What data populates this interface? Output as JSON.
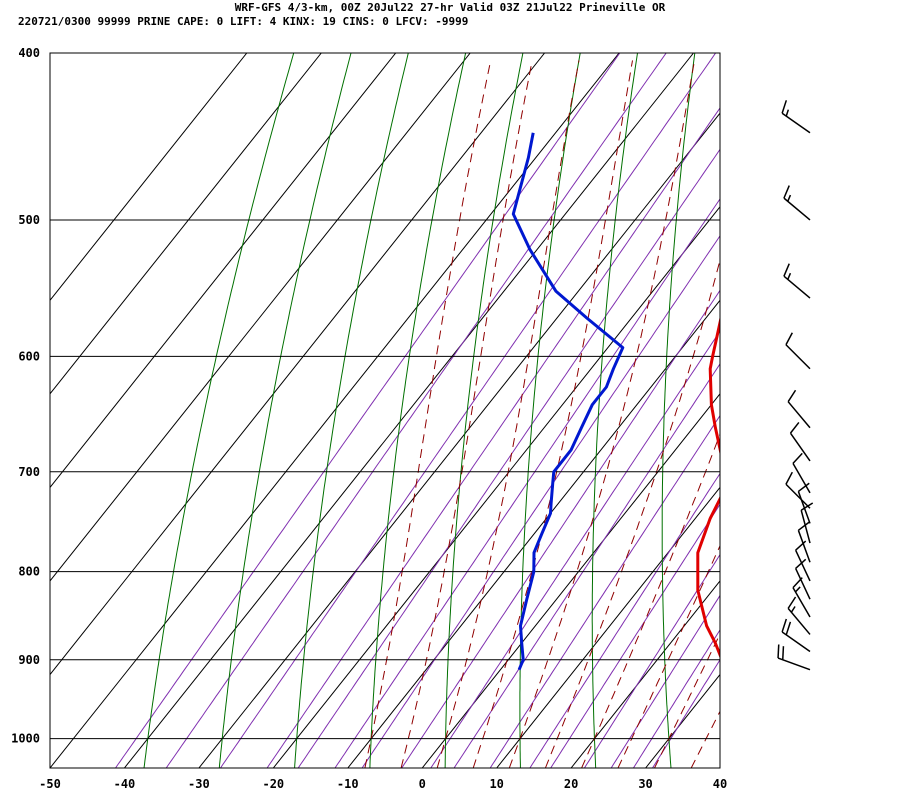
{
  "header": {
    "line1": "WRF-GFS 4/3-km, 00Z 20Jul22 27-hr Valid 03Z 21Jul22 Prineville OR",
    "line2": "220721/0300 99999  PRINE   CAPE:      0 LIFT:     4 KINX:    19 CINS:     0 LFCV: -9999"
  },
  "chart_data": {
    "type": "line",
    "title": "WRF-GFS 4/3-km, 00Z 20Jul22 27-hr Valid 03Z 21Jul22 Prineville OR",
    "subtitle": "220721/0300 99999  PRINE   CAPE:      0 LIFT:     4 KINX:    19 CINS:     0 LFCV: -9999",
    "skew_deg_per_log_p": 80,
    "xlim": [
      -50,
      40
    ],
    "ylim": [
      1040,
      400
    ],
    "y_scale": "log",
    "grid": true,
    "x_ticks": [
      -50,
      -40,
      -30,
      -20,
      -10,
      0,
      10,
      20,
      30,
      40
    ],
    "y_ticks": [
      400,
      500,
      600,
      700,
      800,
      900,
      1000
    ],
    "isotherms_C": [
      -100,
      -90,
      -80,
      -70,
      -60,
      -50,
      -40,
      -30,
      -20,
      -10,
      0,
      10,
      20,
      30,
      40
    ],
    "dry_adiabats_C": [
      -40,
      -30,
      -20,
      -10,
      0,
      10,
      20,
      30,
      40,
      50,
      60,
      70,
      80,
      90,
      100,
      110,
      120,
      130
    ],
    "moist_adiabats_C": [
      -10,
      -5,
      0,
      5,
      10,
      15,
      20,
      25,
      30,
      35
    ],
    "mixing_ratio_gkg": [
      0.1,
      0.2,
      0.4,
      0.7,
      1,
      1.5,
      2,
      3,
      4,
      5,
      7,
      10,
      12,
      16,
      20,
      24,
      28
    ],
    "series": [
      {
        "name": "",
        "color": "#e00000",
        "points": [
          [
            912,
            30.5
          ],
          [
            906,
            29.5
          ],
          [
            880,
            26
          ],
          [
            860,
            23
          ],
          [
            820,
            18
          ],
          [
            780,
            14
          ],
          [
            745,
            12
          ],
          [
            720,
            11
          ],
          [
            700,
            9
          ],
          [
            660,
            3
          ],
          [
            640,
            0
          ],
          [
            610,
            -4
          ],
          [
            600,
            -5
          ],
          [
            560,
            -9
          ],
          [
            520,
            -13
          ],
          [
            500,
            -15
          ],
          [
            470,
            -19
          ],
          [
            445,
            -21
          ]
        ]
      },
      {
        "name": "",
        "color": "#0018d0",
        "points": [
          [
            912,
            2.5
          ],
          [
            900,
            2
          ],
          [
            880,
            0
          ],
          [
            860,
            -2
          ],
          [
            830,
            -4
          ],
          [
            800,
            -6
          ],
          [
            780,
            -8
          ],
          [
            760,
            -9
          ],
          [
            740,
            -10
          ],
          [
            730,
            -11
          ],
          [
            710,
            -13
          ],
          [
            700,
            -14
          ],
          [
            680,
            -14
          ],
          [
            660,
            -15
          ],
          [
            640,
            -16
          ],
          [
            625,
            -16
          ],
          [
            610,
            -17
          ],
          [
            593,
            -18
          ],
          [
            570,
            -26
          ],
          [
            550,
            -33
          ],
          [
            520,
            -41
          ],
          [
            496,
            -47
          ],
          [
            460,
            -51
          ],
          [
            445,
            -53
          ]
        ]
      }
    ],
    "wind_barbs": [
      {
        "p": 445,
        "dir": 305,
        "spd": 15
      },
      {
        "p": 500,
        "dir": 310,
        "spd": 15
      },
      {
        "p": 555,
        "dir": 310,
        "spd": 15
      },
      {
        "p": 610,
        "dir": 315,
        "spd": 10
      },
      {
        "p": 660,
        "dir": 320,
        "spd": 10
      },
      {
        "p": 690,
        "dir": 325,
        "spd": 10
      },
      {
        "p": 720,
        "dir": 330,
        "spd": 10
      },
      {
        "p": 735,
        "dir": 315,
        "spd": 10
      },
      {
        "p": 750,
        "dir": 340,
        "spd": 10
      },
      {
        "p": 770,
        "dir": 345,
        "spd": 10
      },
      {
        "p": 790,
        "dir": 340,
        "spd": 10
      },
      {
        "p": 810,
        "dir": 335,
        "spd": 10
      },
      {
        "p": 830,
        "dir": 335,
        "spd": 10
      },
      {
        "p": 850,
        "dir": 330,
        "spd": 15
      },
      {
        "p": 870,
        "dir": 320,
        "spd": 15
      },
      {
        "p": 890,
        "dir": 305,
        "spd": 20
      },
      {
        "p": 912,
        "dir": 290,
        "spd": 20
      }
    ],
    "colors": {
      "temperature": "#e00000",
      "dewpoint": "#0018d0",
      "isotherm": "#000000",
      "dry_adiabat": "#007000",
      "moist_adiabat": "#900000",
      "mixing_ratio": "#8030b0",
      "wind_barb": "#000000"
    }
  }
}
